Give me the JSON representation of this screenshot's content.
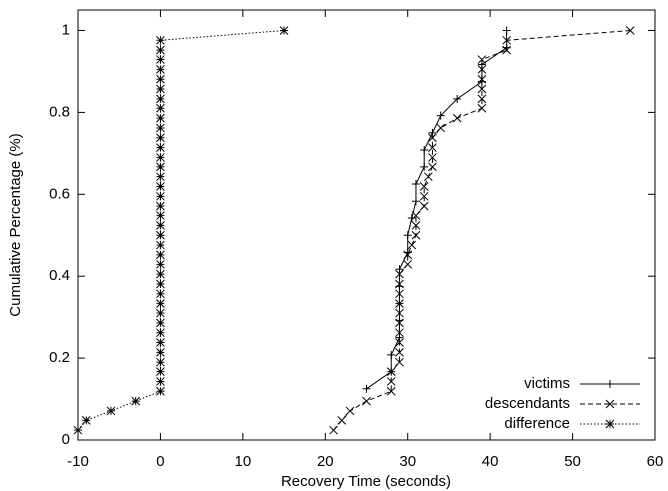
{
  "chart_data": {
    "type": "line",
    "x_label": "Recovery Time (seconds)",
    "y_label": "Cumulative Percentage (%)",
    "xlim": [
      -10,
      60
    ],
    "xticks": [
      -10,
      0,
      10,
      20,
      30,
      40,
      50,
      60
    ],
    "ylim": [
      0,
      1.05
    ],
    "yticks": [
      0,
      0.2,
      0.4,
      0.6,
      0.8,
      1
    ],
    "legend": "bottom-right",
    "series": [
      {
        "name": "victims",
        "color": "#000000",
        "dash": "solid",
        "marker": "plus",
        "x": [
          25,
          28,
          28,
          29,
          29,
          29,
          29,
          29,
          30,
          30,
          30.5,
          31,
          31,
          32,
          32,
          33,
          34,
          36,
          39,
          39,
          42,
          42
        ],
        "values": [
          0.125,
          0.167,
          0.208,
          0.25,
          0.292,
          0.333,
          0.375,
          0.417,
          0.458,
          0.5,
          0.542,
          0.583,
          0.625,
          0.667,
          0.708,
          0.75,
          0.792,
          0.833,
          0.875,
          0.917,
          0.958,
          1
        ]
      },
      {
        "name": "descendants",
        "color": "#000000",
        "dash": "dashed",
        "marker": "cross",
        "x": [
          21,
          22,
          23,
          25,
          28,
          28,
          28,
          29,
          29,
          29,
          29,
          29,
          29,
          29,
          29,
          29,
          29,
          30,
          30,
          30.5,
          31,
          31,
          31,
          32,
          32,
          32,
          32.5,
          33,
          33,
          33,
          33,
          34,
          36,
          39,
          39,
          39,
          39,
          39,
          39,
          42,
          42,
          57
        ],
        "values": [
          0.024,
          0.048,
          0.071,
          0.095,
          0.119,
          0.143,
          0.167,
          0.19,
          0.214,
          0.238,
          0.262,
          0.286,
          0.31,
          0.333,
          0.357,
          0.381,
          0.405,
          0.429,
          0.452,
          0.476,
          0.5,
          0.524,
          0.548,
          0.571,
          0.595,
          0.619,
          0.643,
          0.667,
          0.69,
          0.714,
          0.738,
          0.762,
          0.786,
          0.81,
          0.833,
          0.857,
          0.881,
          0.905,
          0.929,
          0.952,
          0.976,
          1
        ]
      },
      {
        "name": "difference",
        "color": "#000000",
        "dash": "dotted",
        "marker": "star",
        "x": [
          -10,
          -9,
          -6,
          -3,
          0,
          0,
          0,
          0,
          0,
          0,
          0,
          0,
          0,
          0,
          0,
          0,
          0,
          0,
          0,
          0,
          0,
          0,
          0,
          0,
          0,
          0,
          0,
          0,
          0,
          0,
          0,
          0,
          0,
          0,
          0,
          0,
          0,
          0,
          0,
          0,
          0,
          15
        ],
        "values": [
          0.024,
          0.048,
          0.071,
          0.095,
          0.119,
          0.143,
          0.167,
          0.19,
          0.214,
          0.238,
          0.262,
          0.286,
          0.31,
          0.333,
          0.357,
          0.381,
          0.405,
          0.429,
          0.452,
          0.476,
          0.5,
          0.524,
          0.548,
          0.571,
          0.595,
          0.619,
          0.643,
          0.667,
          0.69,
          0.714,
          0.738,
          0.762,
          0.786,
          0.81,
          0.833,
          0.857,
          0.881,
          0.905,
          0.929,
          0.952,
          0.976,
          1
        ]
      }
    ]
  }
}
